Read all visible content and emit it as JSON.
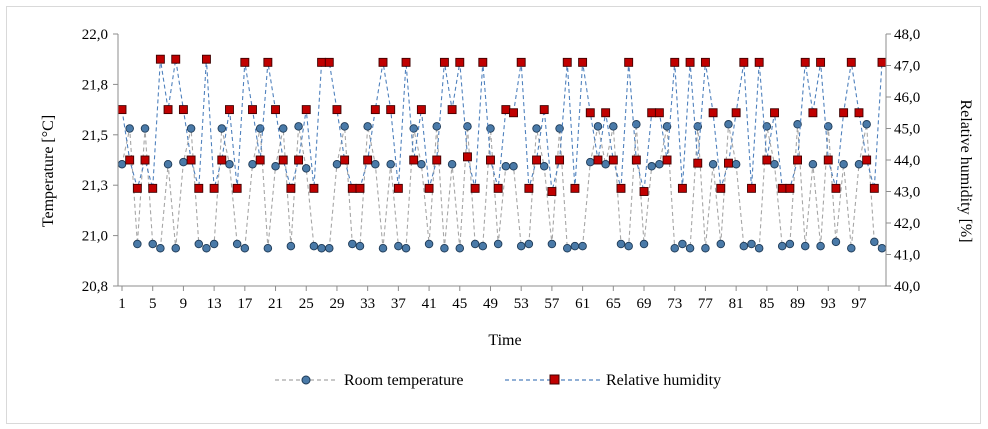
{
  "chart_data": {
    "type": "line",
    "xlabel": "Time",
    "ylabel_left": "Temperature [°C]",
    "ylabel_right": "Relative humidity [%]",
    "ylim_left": [
      20.8,
      22.0
    ],
    "ylim_right": [
      40.0,
      48.0
    ],
    "y_ticks_left": [
      "22,0",
      "21,8",
      "21,5",
      "21,3",
      "21,0",
      "20,8"
    ],
    "y_ticks_right": [
      "48,0",
      "47,0",
      "46,0",
      "45,0",
      "44,0",
      "43,0",
      "42,0",
      "41,0",
      "40,0"
    ],
    "x_ticks": [
      "1",
      "5",
      "9",
      "13",
      "17",
      "21",
      "25",
      "29",
      "33",
      "37",
      "41",
      "45",
      "49",
      "53",
      "57",
      "61",
      "65",
      "69",
      "73",
      "77",
      "81",
      "85",
      "89",
      "93",
      "97"
    ],
    "grid": false,
    "legend_position": "bottom",
    "series": [
      {
        "name": "Room temperature",
        "axis": "left",
        "color": "#4a7aa8",
        "marker": "circle",
        "line_color": "#a6a6a6",
        "values": [
          21.38,
          21.55,
          21.0,
          21.55,
          21.0,
          20.98,
          21.38,
          20.98,
          21.39,
          21.55,
          21.0,
          20.98,
          21.0,
          21.55,
          21.38,
          21.0,
          20.98,
          21.38,
          21.55,
          20.98,
          21.37,
          21.55,
          20.99,
          21.56,
          21.36,
          20.99,
          20.98,
          20.98,
          21.38,
          21.56,
          21.0,
          20.99,
          21.56,
          21.38,
          20.98,
          21.38,
          20.99,
          20.98,
          21.55,
          21.38,
          21.0,
          21.56,
          20.98,
          21.38,
          20.98,
          21.56,
          21.0,
          20.99,
          21.55,
          21.0,
          21.37,
          21.37,
          20.99,
          21.0,
          21.55,
          21.37,
          21.0,
          21.55,
          20.98,
          20.99,
          20.99,
          21.39,
          21.56,
          21.38,
          21.56,
          21.0,
          20.99,
          21.57,
          21.0,
          21.37,
          21.38,
          21.56,
          20.98,
          21.0,
          20.98,
          21.56,
          20.98,
          21.38,
          21.0,
          21.57,
          21.38,
          20.99,
          21.0,
          20.98,
          21.56,
          21.38,
          20.99,
          21.0,
          21.57,
          20.99,
          21.38,
          20.99,
          21.56,
          21.01,
          21.38,
          20.98,
          21.38,
          21.57,
          21.01,
          20.98
        ]
      },
      {
        "name": "Relative humidity",
        "axis": "right",
        "color": "#c00000",
        "marker": "square",
        "line_color": "#4f81bd",
        "values": [
          45.6,
          44.0,
          43.1,
          44.0,
          43.1,
          47.2,
          45.6,
          47.2,
          45.6,
          44.0,
          43.1,
          47.2,
          43.1,
          44.0,
          45.6,
          43.1,
          47.1,
          45.6,
          44.0,
          47.1,
          45.6,
          44.0,
          43.1,
          44.0,
          45.6,
          43.1,
          47.1,
          47.1,
          45.6,
          44.0,
          43.1,
          43.1,
          44.0,
          45.6,
          47.1,
          45.6,
          43.1,
          47.1,
          44.0,
          45.6,
          43.1,
          44.0,
          47.1,
          45.6,
          47.1,
          44.1,
          43.1,
          47.1,
          44.0,
          43.1,
          45.6,
          45.5,
          47.1,
          43.1,
          44.0,
          45.6,
          43.0,
          44.0,
          47.1,
          43.1,
          47.1,
          45.5,
          44.0,
          45.5,
          44.0,
          43.1,
          47.1,
          44.0,
          43.0,
          45.5,
          45.5,
          44.0,
          47.1,
          43.1,
          47.1,
          43.9,
          47.1,
          45.5,
          43.1,
          43.9,
          45.5,
          47.1,
          43.1,
          47.1,
          44.0,
          45.5,
          43.1,
          43.1,
          44.0,
          47.1,
          45.5,
          47.1,
          44.0,
          43.1,
          45.5,
          47.1,
          45.5,
          44.0,
          43.1,
          47.1
        ]
      }
    ]
  }
}
